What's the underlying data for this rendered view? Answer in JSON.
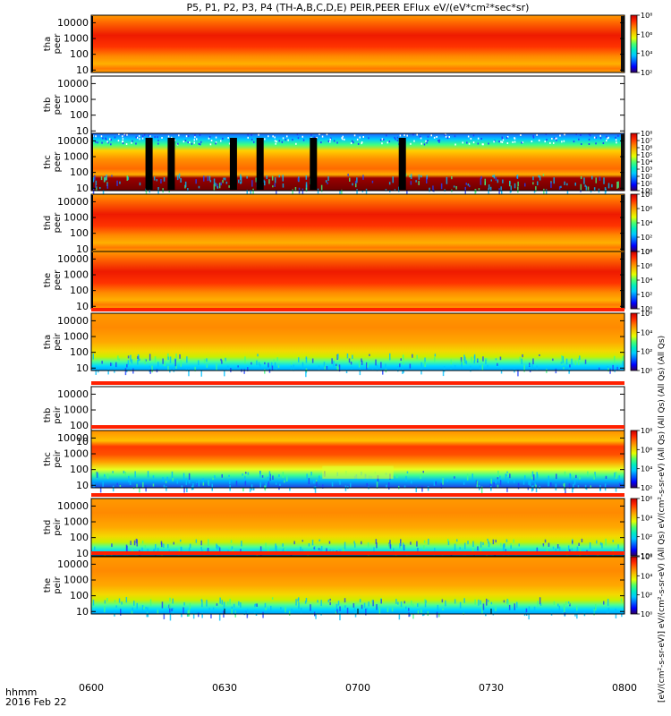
{
  "header": {
    "title": "P5, P1, P2, P3, P4 (TH-A,B,C,D,E) PEIR,PEER EFlux eV/(eV*cm²*sec*sr)"
  },
  "time_axis": {
    "unit_label": "hhmm",
    "date_label": "2016 Feb 22",
    "ticks": [
      "0600",
      "0630",
      "0700",
      "0730",
      "0800"
    ]
  },
  "colorbar_label": "[eV/(cm²-s-sr-eV)]  eV/(cm²-s-sr-eV) (All Qs) eV/(cm²-s-sr-eV) (All Qs) (All Qs) (All Qs) (All Qs)",
  "chart_data": [
    {
      "type": "heatmap",
      "ylabel": [
        "tha",
        "peer"
      ],
      "ylim": [
        7,
        30000
      ],
      "yticks": [
        "10",
        "100",
        "1000",
        "10000"
      ],
      "status": "data",
      "profile": "peer",
      "cbar_ticks": [
        "10²",
        "10⁴",
        "10⁶",
        "10⁸"
      ],
      "cbar_range": [
        2,
        8
      ]
    },
    {
      "type": "heatmap",
      "ylabel": [
        "thb",
        "peer"
      ],
      "ylim": [
        7,
        30000
      ],
      "yticks": [
        "10",
        "100",
        "1000",
        "10000"
      ],
      "status": "empty",
      "profile": "empty",
      "cbar_ticks": [],
      "cbar_range": []
    },
    {
      "type": "heatmap",
      "ylabel": [
        "thc",
        "peer"
      ],
      "ylim": [
        7,
        30000
      ],
      "yticks": [
        "10",
        "100",
        "1000",
        "10000"
      ],
      "status": "data",
      "profile": "thc_peer",
      "cbar_ticks": [
        "10⁰",
        "10¹",
        "10²",
        "10³",
        "10⁴",
        "10⁵",
        "10⁶",
        "10⁷",
        "10⁸"
      ],
      "cbar_range": [
        0,
        8
      ],
      "gaps_hhmm": [
        "0613",
        "0618",
        "0632",
        "0638",
        "0650",
        "0710"
      ]
    },
    {
      "type": "heatmap",
      "ylabel": [
        "thd",
        "peer"
      ],
      "ylim": [
        7,
        30000
      ],
      "yticks": [
        "10",
        "100",
        "1000",
        "10000"
      ],
      "status": "data",
      "profile": "peer",
      "cbar_ticks": [
        "10⁰",
        "10²",
        "10⁴",
        "10⁶",
        "10⁸"
      ],
      "cbar_range": [
        0,
        8
      ]
    },
    {
      "type": "heatmap",
      "ylabel": [
        "the",
        "peer"
      ],
      "ylim": [
        7,
        30000
      ],
      "yticks": [
        "10",
        "100",
        "1000",
        "10000"
      ],
      "status": "data",
      "profile": "peer",
      "cbar_ticks": [
        "10⁰",
        "10²",
        "10⁴",
        "10⁶",
        "10⁸"
      ],
      "cbar_range": [
        0,
        8
      ]
    },
    {
      "type": "heatmap",
      "ylabel": [
        "tha",
        "peir"
      ],
      "ylim": [
        7,
        30000
      ],
      "yticks": [
        "10",
        "100",
        "1000",
        "10000"
      ],
      "status": "data",
      "profile": "peir",
      "cbar_ticks": [
        "10⁰",
        "10²",
        "10⁴",
        "10⁶"
      ],
      "cbar_range": [
        0,
        7
      ]
    },
    {
      "type": "heatmap",
      "ylabel": [
        "thb",
        "peir"
      ],
      "ylim": [
        7,
        30000
      ],
      "yticks": [
        "10",
        "100",
        "1000",
        "10000"
      ],
      "status": "empty",
      "profile": "empty",
      "cbar_ticks": [],
      "cbar_range": []
    },
    {
      "type": "heatmap",
      "ylabel": [
        "thc",
        "peir"
      ],
      "ylim": [
        7,
        30000
      ],
      "yticks": [
        "10",
        "100",
        "1000",
        "10000"
      ],
      "status": "data",
      "profile": "thc_peir",
      "cbar_ticks": [
        "10²",
        "10⁴",
        "10⁶",
        "10⁸"
      ],
      "cbar_range": [
        1,
        8
      ]
    },
    {
      "type": "heatmap",
      "ylabel": [
        "thd",
        "peir"
      ],
      "ylim": [
        7,
        30000
      ],
      "yticks": [
        "10",
        "100",
        "1000",
        "10000"
      ],
      "status": "data",
      "profile": "peir",
      "cbar_ticks": [
        "10⁰",
        "10²",
        "10⁴",
        "10⁶"
      ],
      "cbar_range": [
        0,
        7
      ]
    },
    {
      "type": "heatmap",
      "ylabel": [
        "the",
        "peir"
      ],
      "ylim": [
        7,
        30000
      ],
      "yticks": [
        "10",
        "100",
        "1000",
        "10000"
      ],
      "status": "data",
      "profile": "peir",
      "cbar_ticks": [
        "10⁰",
        "10²",
        "10⁴",
        "10⁶"
      ],
      "cbar_range": [
        0,
        7
      ]
    }
  ]
}
